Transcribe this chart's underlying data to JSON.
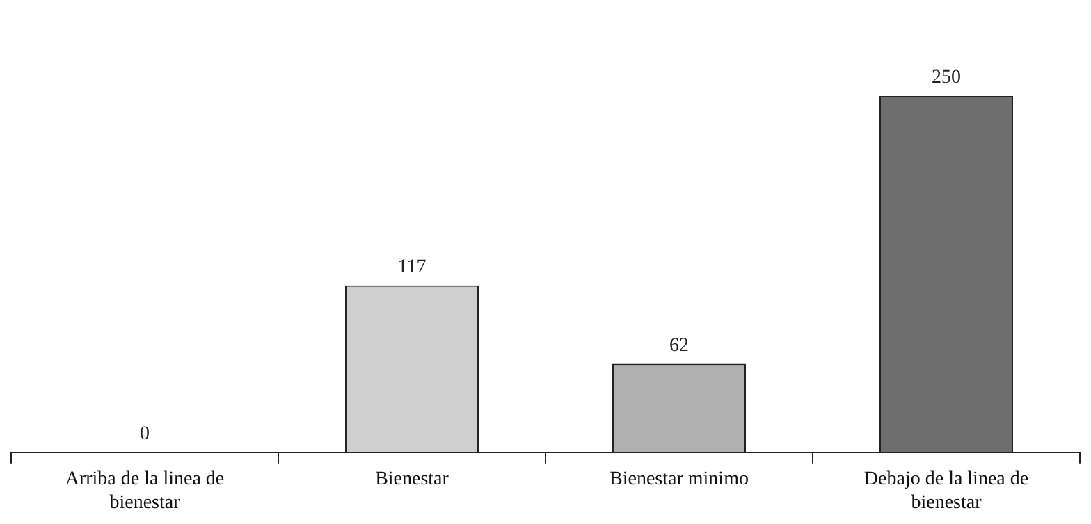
{
  "chart_data": {
    "type": "bar",
    "categories": [
      "Arriba de la linea de bienestar",
      "Bienestar",
      "Bienestar minimo",
      "Debajo de la linea de bienestar"
    ],
    "values": [
      0,
      117,
      62,
      250
    ],
    "colors": [
      "#9a9a9a",
      "#cfcfcf",
      "#b0b0b0",
      "#6e6e6e"
    ],
    "data_labels": true,
    "grid": false,
    "legend": false
  }
}
